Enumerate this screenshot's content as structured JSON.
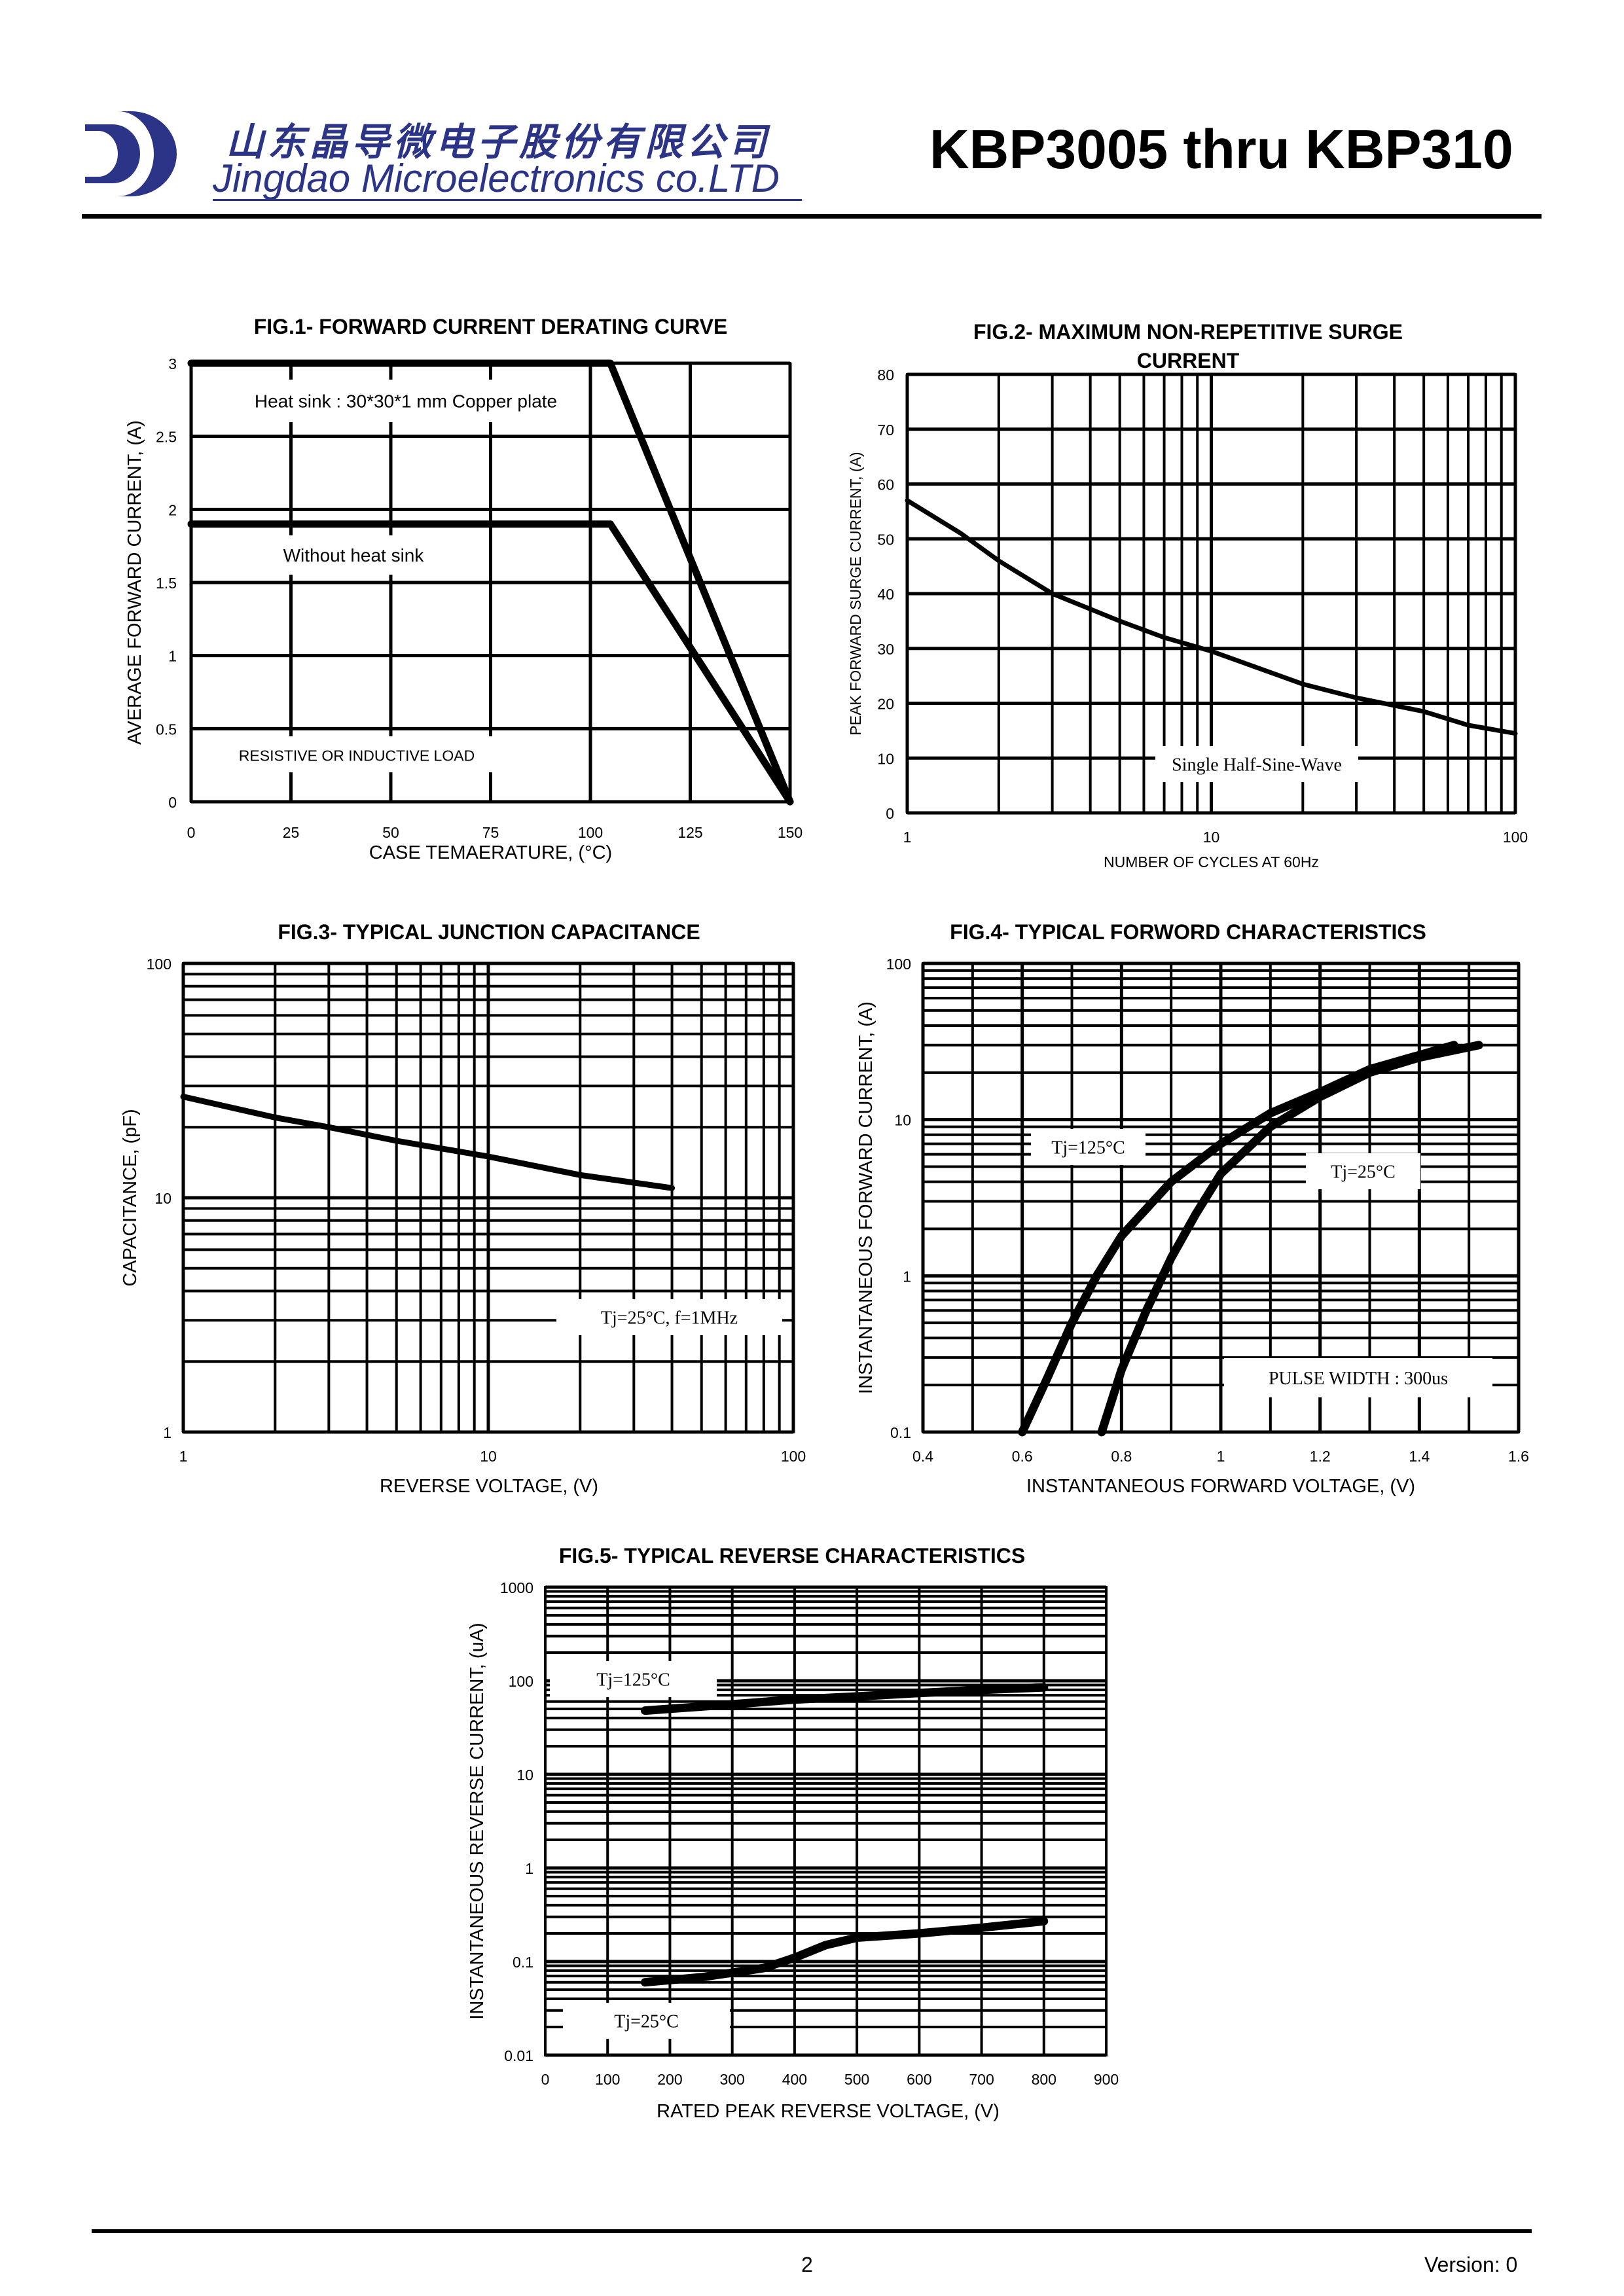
{
  "header": {
    "company_cn": "山东晶导微电子股份有限公司",
    "company_en": "Jingdao Microelectronics co.LTD",
    "part_title": "KBP3005 thru KBP310"
  },
  "footer": {
    "page": "2",
    "version": "Version: 0"
  },
  "colors": {
    "brand": "#2b3487",
    "ink": "#000000"
  },
  "chart_data": [
    {
      "id": "fig1",
      "type": "line",
      "title": "FIG.1- FORWARD CURRENT DERATING CURVE",
      "xlabel": "CASE TEMAERATURE, (°C)",
      "ylabel": "AVERAGE FORWARD CURRENT, (A)",
      "xlim": [
        0,
        150
      ],
      "ylim": [
        0,
        3
      ],
      "xticks": [
        0,
        25,
        50,
        75,
        100,
        125,
        150
      ],
      "yticks": [
        0,
        0.5,
        1,
        1.5,
        2,
        2.5,
        3
      ],
      "xtick_labels": [
        "0",
        "25",
        "50",
        "75",
        "100",
        "125",
        "150"
      ],
      "ytick_labels": [
        "0",
        "0.5",
        "1",
        "1.5",
        "2",
        "2.5",
        "3"
      ],
      "series": [
        {
          "name": "Heat sink : 30*30*1 mm Copper plate",
          "x": [
            0,
            105,
            150
          ],
          "y": [
            3,
            3,
            0
          ]
        },
        {
          "name": "Without heat sink",
          "x": [
            0,
            105,
            150
          ],
          "y": [
            1.9,
            1.9,
            0
          ]
        }
      ],
      "annotations": [
        "Heat sink : 30*30*1 mm Copper plate",
        "Without heat sink",
        "RESISTIVE OR INDUCTIVE LOAD"
      ]
    },
    {
      "id": "fig2",
      "type": "line",
      "title": "FIG.2- MAXIMUM NON-REPETITIVE SURGE CURRENT",
      "xlabel": "NUMBER OF CYCLES AT 60Hz",
      "ylabel": "PEAK FORWARD SURGE CURRENT, (A)",
      "xscale": "log",
      "xlim": [
        1,
        100
      ],
      "ylim": [
        0,
        80
      ],
      "xtick_labels": [
        "1",
        "10",
        "100"
      ],
      "ytick_labels": [
        "0",
        "10",
        "20",
        "30",
        "40",
        "50",
        "60",
        "70",
        "80"
      ],
      "series": [
        {
          "name": "Single Half-Sine-Wave",
          "x": [
            1,
            1.5,
            2,
            3,
            5,
            7,
            10,
            15,
            20,
            30,
            50,
            70,
            100
          ],
          "y": [
            57,
            51,
            46,
            40,
            35,
            32,
            29.5,
            26,
            23.5,
            21,
            18.5,
            16,
            14.5
          ]
        }
      ],
      "annotations": [
        "Single Half-Sine-Wave"
      ]
    },
    {
      "id": "fig3",
      "type": "line",
      "title": "FIG.3- TYPICAL JUNCTION CAPACITANCE",
      "xlabel": "REVERSE VOLTAGE, (V)",
      "ylabel": "CAPACITANCE, (pF)",
      "xscale": "log",
      "yscale": "log",
      "xlim": [
        1,
        100
      ],
      "ylim": [
        1,
        100
      ],
      "xtick_labels": [
        "1",
        "10",
        "100"
      ],
      "ytick_labels": [
        "1",
        "10",
        "100"
      ],
      "series": [
        {
          "name": "Tj=25°C, f=1MHz",
          "x": [
            1,
            2,
            3,
            5,
            10,
            20,
            40
          ],
          "y": [
            27,
            22,
            20,
            17.5,
            15,
            12.5,
            11
          ]
        }
      ],
      "annotations": [
        "Tj=25°C, f=1MHz"
      ]
    },
    {
      "id": "fig4",
      "type": "line",
      "title": "FIG.4- TYPICAL FORWORD CHARACTERISTICS",
      "xlabel": "INSTANTANEOUS FORWARD VOLTAGE, (V)",
      "ylabel": "INSTANTANEOUS FORWARD CURRENT, (A)",
      "yscale": "log",
      "xlim": [
        0.4,
        1.6
      ],
      "ylim": [
        0.1,
        100
      ],
      "xtick_labels": [
        "0.4",
        "0.6",
        "0.8",
        "1",
        "1.2",
        "1.4",
        "1.6"
      ],
      "ytick_labels": [
        "0.1",
        "1",
        "10",
        "100"
      ],
      "series": [
        {
          "name": "Tj=125°C",
          "x": [
            0.6,
            0.65,
            0.7,
            0.75,
            0.8,
            0.9,
            1.0,
            1.1,
            1.2,
            1.3,
            1.47
          ],
          "y": [
            0.1,
            0.22,
            0.5,
            1.0,
            1.8,
            4.0,
            7.0,
            11,
            15,
            21,
            30
          ]
        },
        {
          "name": "Tj=25°C",
          "x": [
            0.76,
            0.8,
            0.85,
            0.9,
            0.95,
            1.0,
            1.1,
            1.2,
            1.3,
            1.4,
            1.52
          ],
          "y": [
            0.1,
            0.25,
            0.6,
            1.3,
            2.5,
            4.5,
            9.0,
            14,
            20,
            25,
            30
          ]
        }
      ],
      "annotations": [
        "Tj=125°C",
        "Tj=25°C",
        "PULSE WIDTH : 300us"
      ]
    },
    {
      "id": "fig5",
      "type": "line",
      "title": "FIG.5- TYPICAL REVERSE CHARACTERISTICS",
      "xlabel": "RATED PEAK REVERSE VOLTAGE, (V)",
      "ylabel": "INSTANTANEOUS REVERSE CURRENT, (uA)",
      "yscale": "log",
      "xlim": [
        0,
        900
      ],
      "ylim": [
        0.01,
        1000
      ],
      "xtick_labels": [
        "0",
        "100",
        "200",
        "300",
        "400",
        "500",
        "600",
        "700",
        "800",
        "900"
      ],
      "ytick_labels": [
        "0.01",
        "0.1",
        "1",
        "10",
        "100",
        "1000"
      ],
      "series": [
        {
          "name": "Tj=125°C",
          "x": [
            160,
            300,
            400,
            500,
            600,
            700,
            800
          ],
          "y": [
            48,
            56,
            63,
            68,
            74,
            80,
            85
          ]
        },
        {
          "name": "Tj=25°C",
          "x": [
            160,
            250,
            350,
            400,
            450,
            500,
            600,
            700,
            800
          ],
          "y": [
            0.06,
            0.068,
            0.085,
            0.11,
            0.15,
            0.18,
            0.2,
            0.23,
            0.27
          ]
        }
      ],
      "annotations": [
        "Tj=125°C",
        "Tj=25°C"
      ]
    }
  ]
}
